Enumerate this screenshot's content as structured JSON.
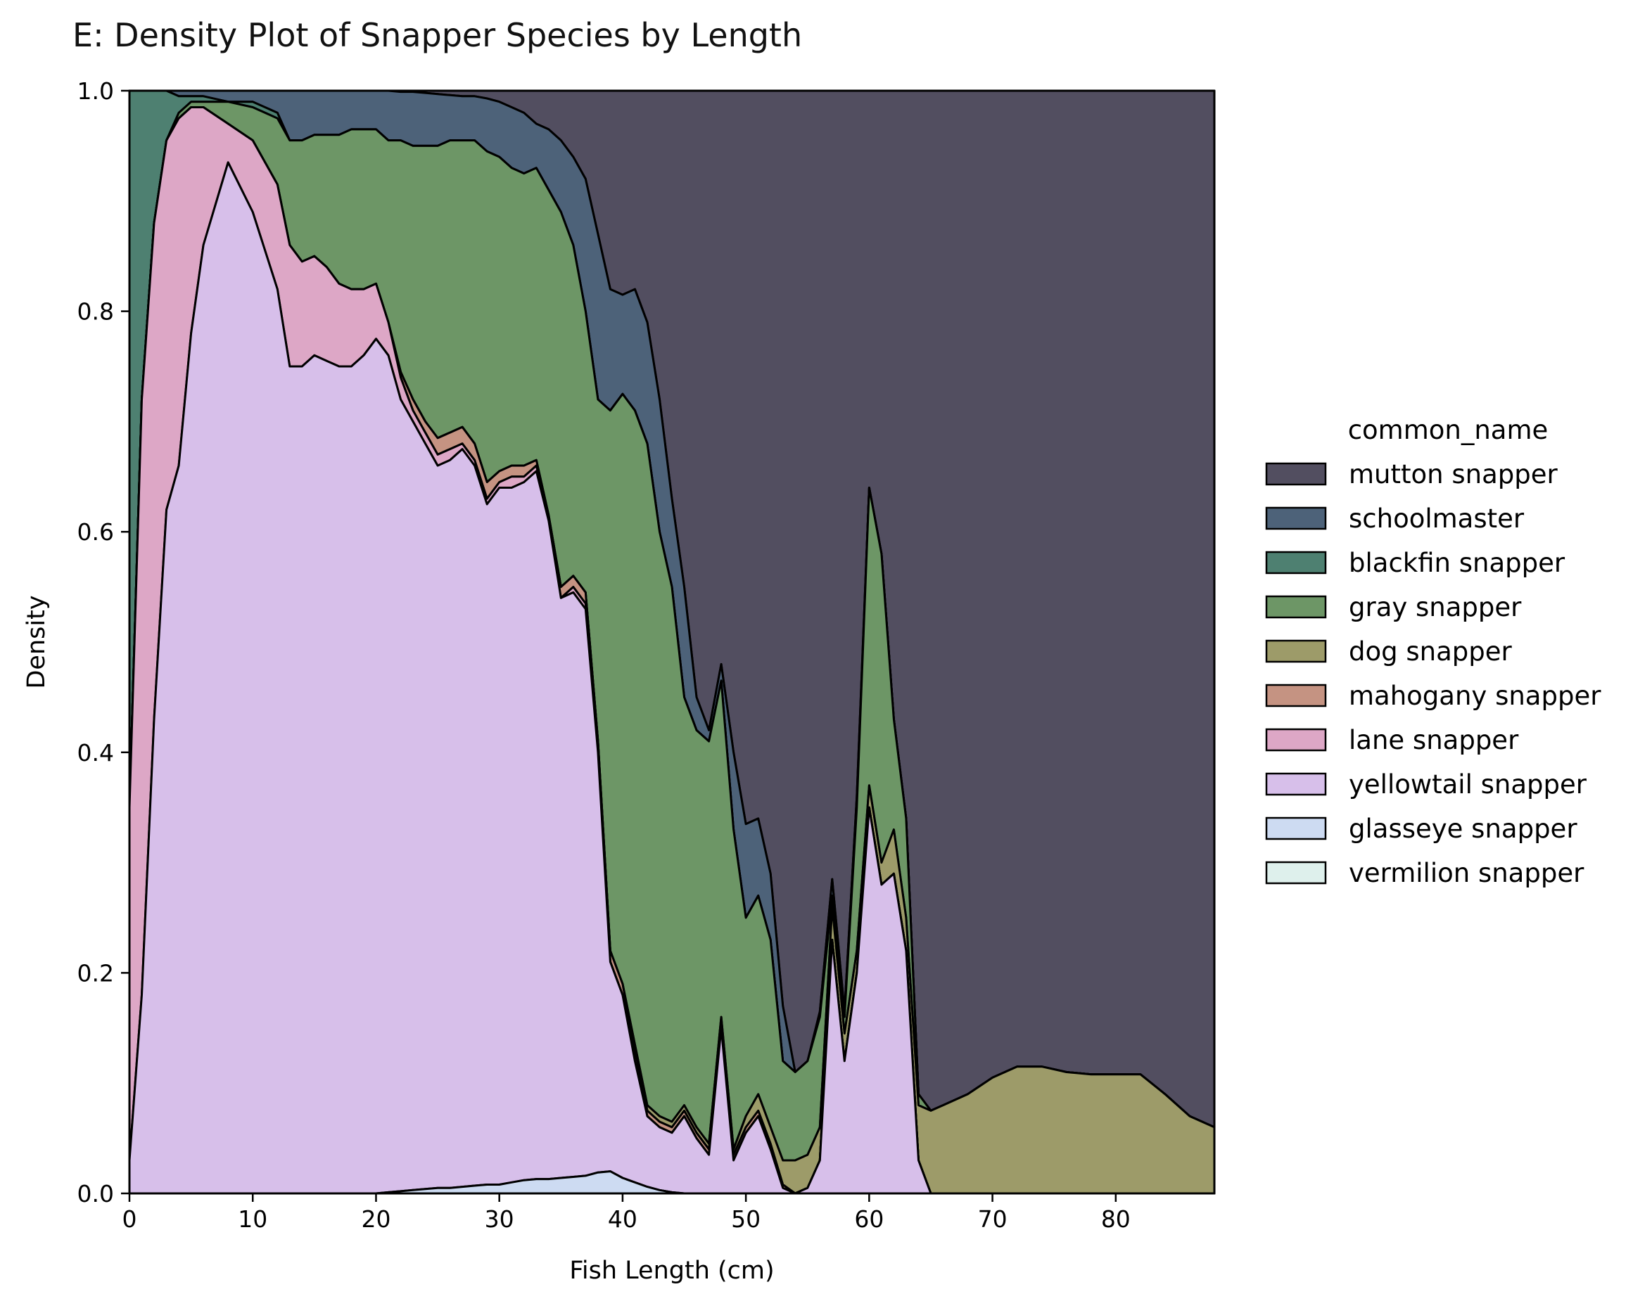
{
  "chart_data": {
    "type": "area",
    "title": "E: Density Plot of Snapper Species by Length",
    "xlabel": "Fish Length (cm)",
    "ylabel": "Density",
    "xlim": [
      0,
      88
    ],
    "ylim": [
      0,
      1
    ],
    "xticks": [
      0,
      10,
      20,
      30,
      40,
      50,
      60,
      70,
      80
    ],
    "yticks": [
      0.0,
      0.2,
      0.4,
      0.6,
      0.8,
      1.0
    ],
    "ytick_labels": [
      "0.0",
      "0.2",
      "0.4",
      "0.6",
      "0.8",
      "1.0"
    ],
    "stacked": true,
    "grid": false,
    "legend": {
      "title": "common_name",
      "placement": "right",
      "entries": [
        "mutton snapper",
        "schoolmaster",
        "blackfin snapper",
        "gray snapper",
        "dog snapper",
        "mahogany snapper",
        "lane snapper",
        "yellowtail snapper",
        "glasseye snapper",
        "vermilion snapper"
      ]
    },
    "x": [
      0,
      1,
      2,
      3,
      4,
      5,
      6,
      8,
      10,
      12,
      13,
      14,
      15,
      16,
      17,
      18,
      19,
      20,
      21,
      22,
      23,
      24,
      25,
      26,
      27,
      28,
      29,
      30,
      31,
      32,
      33,
      34,
      35,
      36,
      37,
      38,
      39,
      40,
      41,
      42,
      43,
      44,
      45,
      46,
      47,
      48,
      49,
      50,
      51,
      52,
      53,
      54,
      55,
      56,
      57,
      58,
      59,
      60,
      61,
      62,
      63,
      64,
      65,
      66,
      68,
      70,
      72,
      74,
      76,
      78,
      80,
      82,
      84,
      86,
      88
    ],
    "cumulative_boundaries": [
      {
        "name": "vermilion snapper",
        "color": "#def0ec",
        "upper": [
          0,
          0,
          0,
          0,
          0,
          0,
          0,
          0,
          0,
          0,
          0,
          0,
          0,
          0,
          0,
          0,
          0,
          0,
          0,
          0,
          0,
          0,
          0,
          0,
          0,
          0,
          0,
          0,
          0,
          0,
          0,
          0,
          0,
          0,
          0,
          0,
          0,
          0,
          0,
          0,
          0,
          0,
          0,
          0,
          0,
          0,
          0,
          0,
          0,
          0,
          0,
          0,
          0,
          0,
          0,
          0,
          0,
          0,
          0,
          0,
          0,
          0,
          0,
          0,
          0,
          0,
          0,
          0,
          0,
          0,
          0,
          0,
          0,
          0,
          0
        ]
      },
      {
        "name": "glasseye snapper",
        "color": "#cddbf2",
        "upper": [
          0,
          0,
          0,
          0,
          0,
          0,
          0,
          0,
          0,
          0,
          0,
          0,
          0,
          0,
          0,
          0,
          0,
          0,
          0.001,
          0.002,
          0.003,
          0.004,
          0.005,
          0.005,
          0.006,
          0.007,
          0.008,
          0.008,
          0.01,
          0.012,
          0.013,
          0.013,
          0.014,
          0.015,
          0.016,
          0.019,
          0.02,
          0.014,
          0.01,
          0.006,
          0.003,
          0.001,
          0,
          0,
          0,
          0,
          0,
          0,
          0,
          0,
          0,
          0,
          0,
          0,
          0,
          0,
          0,
          0,
          0,
          0,
          0,
          0,
          0,
          0,
          0,
          0,
          0,
          0,
          0,
          0,
          0,
          0,
          0,
          0,
          0
        ]
      },
      {
        "name": "yellowtail snapper",
        "color": "#d7bfea",
        "upper": [
          0.03,
          0.18,
          0.43,
          0.62,
          0.66,
          0.78,
          0.86,
          0.935,
          0.89,
          0.82,
          0.75,
          0.75,
          0.76,
          0.755,
          0.75,
          0.75,
          0.76,
          0.775,
          0.76,
          0.72,
          0.7,
          0.68,
          0.66,
          0.665,
          0.675,
          0.66,
          0.625,
          0.64,
          0.64,
          0.645,
          0.655,
          0.61,
          0.54,
          0.545,
          0.53,
          0.4,
          0.21,
          0.18,
          0.12,
          0.07,
          0.06,
          0.055,
          0.07,
          0.05,
          0.035,
          0.15,
          0.03,
          0.055,
          0.07,
          0.04,
          0.005,
          0,
          0.005,
          0.03,
          0.23,
          0.12,
          0.2,
          0.35,
          0.28,
          0.29,
          0.22,
          0.03,
          0,
          0,
          0,
          0,
          0,
          0,
          0,
          0,
          0,
          0,
          0,
          0,
          0
        ]
      },
      {
        "name": "lane snapper",
        "color": "#dda7c6",
        "upper": [
          0.35,
          0.72,
          0.88,
          0.955,
          0.975,
          0.985,
          0.985,
          0.97,
          0.955,
          0.915,
          0.86,
          0.845,
          0.85,
          0.84,
          0.825,
          0.82,
          0.82,
          0.825,
          0.79,
          0.74,
          0.71,
          0.69,
          0.67,
          0.675,
          0.68,
          0.665,
          0.63,
          0.645,
          0.65,
          0.65,
          0.66,
          0.61,
          0.54,
          0.55,
          0.535,
          0.4,
          0.21,
          0.18,
          0.12,
          0.07,
          0.06,
          0.055,
          0.07,
          0.05,
          0.035,
          0.15,
          0.03,
          0.055,
          0.07,
          0.04,
          0.005,
          0,
          0.005,
          0.03,
          0.23,
          0.12,
          0.2,
          0.35,
          0.28,
          0.29,
          0.22,
          0.03,
          0,
          0,
          0,
          0,
          0,
          0,
          0,
          0,
          0,
          0,
          0,
          0,
          0
        ]
      },
      {
        "name": "mahogany snapper",
        "color": "#c59382",
        "upper": [
          0.35,
          0.72,
          0.88,
          0.955,
          0.975,
          0.985,
          0.985,
          0.97,
          0.955,
          0.915,
          0.86,
          0.845,
          0.85,
          0.84,
          0.825,
          0.82,
          0.82,
          0.825,
          0.79,
          0.745,
          0.72,
          0.7,
          0.685,
          0.69,
          0.695,
          0.68,
          0.645,
          0.655,
          0.66,
          0.66,
          0.665,
          0.615,
          0.55,
          0.56,
          0.545,
          0.41,
          0.22,
          0.19,
          0.13,
          0.075,
          0.065,
          0.06,
          0.075,
          0.055,
          0.04,
          0.155,
          0.035,
          0.06,
          0.075,
          0.045,
          0.008,
          0,
          0.005,
          0.03,
          0.23,
          0.12,
          0.2,
          0.35,
          0.28,
          0.29,
          0.22,
          0.03,
          0,
          0,
          0,
          0,
          0,
          0,
          0,
          0,
          0,
          0,
          0,
          0,
          0
        ]
      },
      {
        "name": "dog snapper",
        "color": "#9d9b69",
        "upper": [
          0.35,
          0.72,
          0.88,
          0.955,
          0.975,
          0.985,
          0.985,
          0.97,
          0.955,
          0.915,
          0.86,
          0.845,
          0.85,
          0.84,
          0.825,
          0.82,
          0.82,
          0.825,
          0.79,
          0.745,
          0.72,
          0.7,
          0.685,
          0.69,
          0.695,
          0.68,
          0.645,
          0.655,
          0.66,
          0.66,
          0.665,
          0.615,
          0.55,
          0.56,
          0.545,
          0.41,
          0.22,
          0.19,
          0.135,
          0.08,
          0.07,
          0.065,
          0.08,
          0.06,
          0.045,
          0.16,
          0.04,
          0.07,
          0.09,
          0.06,
          0.03,
          0.03,
          0.035,
          0.06,
          0.26,
          0.145,
          0.22,
          0.37,
          0.3,
          0.33,
          0.25,
          0.08,
          0.075,
          0.08,
          0.09,
          0.105,
          0.115,
          0.115,
          0.11,
          0.108,
          0.108,
          0.108,
          0.09,
          0.07,
          0.06
        ]
      },
      {
        "name": "gray snapper",
        "color": "#6d9666",
        "upper": [
          0.35,
          0.72,
          0.88,
          0.955,
          0.98,
          0.99,
          0.99,
          0.99,
          0.985,
          0.975,
          0.955,
          0.955,
          0.96,
          0.96,
          0.96,
          0.965,
          0.965,
          0.965,
          0.955,
          0.955,
          0.95,
          0.95,
          0.95,
          0.955,
          0.955,
          0.955,
          0.945,
          0.94,
          0.93,
          0.925,
          0.93,
          0.91,
          0.89,
          0.86,
          0.8,
          0.72,
          0.71,
          0.725,
          0.71,
          0.68,
          0.6,
          0.55,
          0.45,
          0.42,
          0.41,
          0.465,
          0.33,
          0.25,
          0.27,
          0.23,
          0.12,
          0.11,
          0.12,
          0.16,
          0.27,
          0.16,
          0.35,
          0.64,
          0.58,
          0.43,
          0.34,
          0.09,
          0.075,
          0.08,
          0.09,
          0.105,
          0.115,
          0.115,
          0.11,
          0.108,
          0.108,
          0.108,
          0.09,
          0.07,
          0.06
        ]
      },
      {
        "name": "blackfin snapper",
        "color": "#4e8071",
        "upper": [
          1.0,
          1.0,
          1.0,
          1.0,
          0.995,
          0.995,
          0.995,
          0.99,
          0.99,
          0.98,
          0.955,
          0.955,
          0.96,
          0.96,
          0.96,
          0.965,
          0.965,
          0.965,
          0.955,
          0.955,
          0.95,
          0.95,
          0.95,
          0.955,
          0.955,
          0.955,
          0.945,
          0.94,
          0.93,
          0.925,
          0.93,
          0.91,
          0.89,
          0.86,
          0.8,
          0.72,
          0.71,
          0.725,
          0.71,
          0.68,
          0.6,
          0.55,
          0.45,
          0.42,
          0.41,
          0.465,
          0.33,
          0.25,
          0.27,
          0.23,
          0.12,
          0.11,
          0.12,
          0.16,
          0.27,
          0.16,
          0.35,
          0.64,
          0.58,
          0.43,
          0.34,
          0.09,
          0.075,
          0.08,
          0.09,
          0.105,
          0.115,
          0.115,
          0.11,
          0.108,
          0.108,
          0.108,
          0.09,
          0.07,
          0.06
        ]
      },
      {
        "name": "schoolmaster",
        "color": "#4d6279",
        "upper": [
          1.0,
          1.0,
          1.0,
          1.0,
          1.0,
          1.0,
          1.0,
          1.0,
          1.0,
          1.0,
          1.0,
          1.0,
          1.0,
          1.0,
          1.0,
          1.0,
          1.0,
          1.0,
          1.0,
          0.999,
          0.999,
          0.998,
          0.997,
          0.996,
          0.995,
          0.995,
          0.993,
          0.99,
          0.985,
          0.98,
          0.97,
          0.965,
          0.955,
          0.94,
          0.92,
          0.87,
          0.82,
          0.815,
          0.82,
          0.79,
          0.72,
          0.63,
          0.55,
          0.45,
          0.42,
          0.48,
          0.4,
          0.335,
          0.34,
          0.29,
          0.17,
          0.11,
          0.12,
          0.165,
          0.285,
          0.165,
          0.36,
          0.64,
          0.58,
          0.43,
          0.34,
          0.09,
          0.075,
          0.08,
          0.09,
          0.105,
          0.115,
          0.115,
          0.11,
          0.108,
          0.108,
          0.108,
          0.09,
          0.07,
          0.06
        ]
      },
      {
        "name": "mutton snapper",
        "color": "#524e60",
        "upper": [
          1,
          1,
          1,
          1,
          1,
          1,
          1,
          1,
          1,
          1,
          1,
          1,
          1,
          1,
          1,
          1,
          1,
          1,
          1,
          1,
          1,
          1,
          1,
          1,
          1,
          1,
          1,
          1,
          1,
          1,
          1,
          1,
          1,
          1,
          1,
          1,
          1,
          1,
          1,
          1,
          1,
          1,
          1,
          1,
          1,
          1,
          1,
          1,
          1,
          1,
          1,
          1,
          1,
          1,
          1,
          1,
          1,
          1,
          1,
          1,
          1,
          1,
          1,
          1,
          1,
          1,
          1,
          1,
          1,
          1,
          1,
          1,
          1,
          1,
          1
        ]
      }
    ]
  }
}
